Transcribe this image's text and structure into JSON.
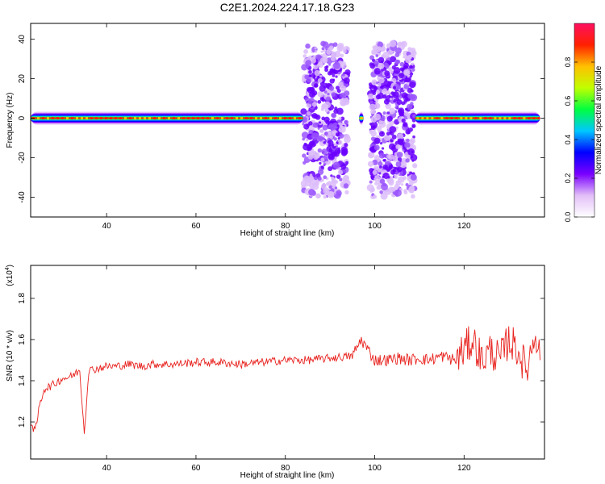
{
  "title": "C2E1.2024.224.17.18.G23",
  "chart_data": [
    {
      "type": "heatmap",
      "xlabel": "Height of straight line (km)",
      "ylabel": "Frequency (Hz)",
      "xlim": [
        23,
        138
      ],
      "ylim": [
        -50,
        48
      ],
      "xticks": [
        40,
        60,
        80,
        100,
        120
      ],
      "yticks": [
        40,
        20,
        0,
        -20,
        -40
      ],
      "colorbar": {
        "label": "Normalized spectral amplitude",
        "range": [
          0,
          1
        ],
        "ticks": [
          "0.0",
          "0.2",
          "0.4",
          "0.6",
          "0.8"
        ],
        "tick_values": [
          0.0,
          0.2,
          0.4,
          0.6,
          0.8
        ],
        "colors": [
          "#ffffff",
          "#e2bff8",
          "#7a00ff",
          "#0000ff",
          "#00c8ff",
          "#00ff40",
          "#c0ff00",
          "#ffc000",
          "#ff2000",
          "#ff1060"
        ]
      },
      "bands": [
        {
          "x_start": 23,
          "x_end": 84,
          "freq": 0,
          "intensity": 0.85
        },
        {
          "x_start": 109,
          "x_end": 137,
          "freq": 0,
          "intensity": 0.85
        },
        {
          "x_start": 96.5,
          "x_end": 97.5,
          "freq": 0,
          "intensity": 0.8
        }
      ],
      "scatter_regions": [
        {
          "x_start": 84,
          "x_end": 94,
          "freq_min": -40,
          "freq_max": 38,
          "intensity": 0.15
        },
        {
          "x_start": 99,
          "x_end": 109,
          "freq_min": -40,
          "freq_max": 38,
          "intensity": 0.15
        }
      ]
    },
    {
      "type": "line",
      "xlabel": "Height of straight line (km)",
      "ylabel": "SNR (10 * v/v)",
      "yscale_label": "(x10",
      "yscale_exp": "4",
      "yscale_close": ")",
      "xlim": [
        23,
        138
      ],
      "ylim": [
        1.02,
        1.96
      ],
      "xticks": [
        40,
        60,
        80,
        100,
        120
      ],
      "yticks": [
        1.2,
        1.4,
        1.6,
        1.8
      ],
      "color": "#e8221e",
      "series": [
        {
          "x": [
            23,
            24,
            25,
            26,
            28,
            30,
            32,
            34,
            35,
            36,
            38,
            40,
            42,
            45,
            48,
            50,
            55,
            60,
            65,
            70,
            75,
            80,
            85,
            90,
            95,
            97,
            100,
            103,
            105,
            108,
            110,
            112,
            115,
            118,
            120,
            122,
            124,
            126,
            128,
            130,
            132,
            134,
            136,
            137
          ],
          "y": [
            1.2,
            1.15,
            1.28,
            1.36,
            1.38,
            1.41,
            1.42,
            1.45,
            1.15,
            1.45,
            1.46,
            1.47,
            1.47,
            1.48,
            1.47,
            1.48,
            1.48,
            1.49,
            1.49,
            1.48,
            1.49,
            1.5,
            1.5,
            1.51,
            1.52,
            1.6,
            1.5,
            1.5,
            1.51,
            1.5,
            1.51,
            1.5,
            1.52,
            1.5,
            1.55,
            1.6,
            1.5,
            1.55,
            1.5,
            1.6,
            1.55,
            1.45,
            1.65,
            1.5
          ]
        }
      ]
    }
  ]
}
